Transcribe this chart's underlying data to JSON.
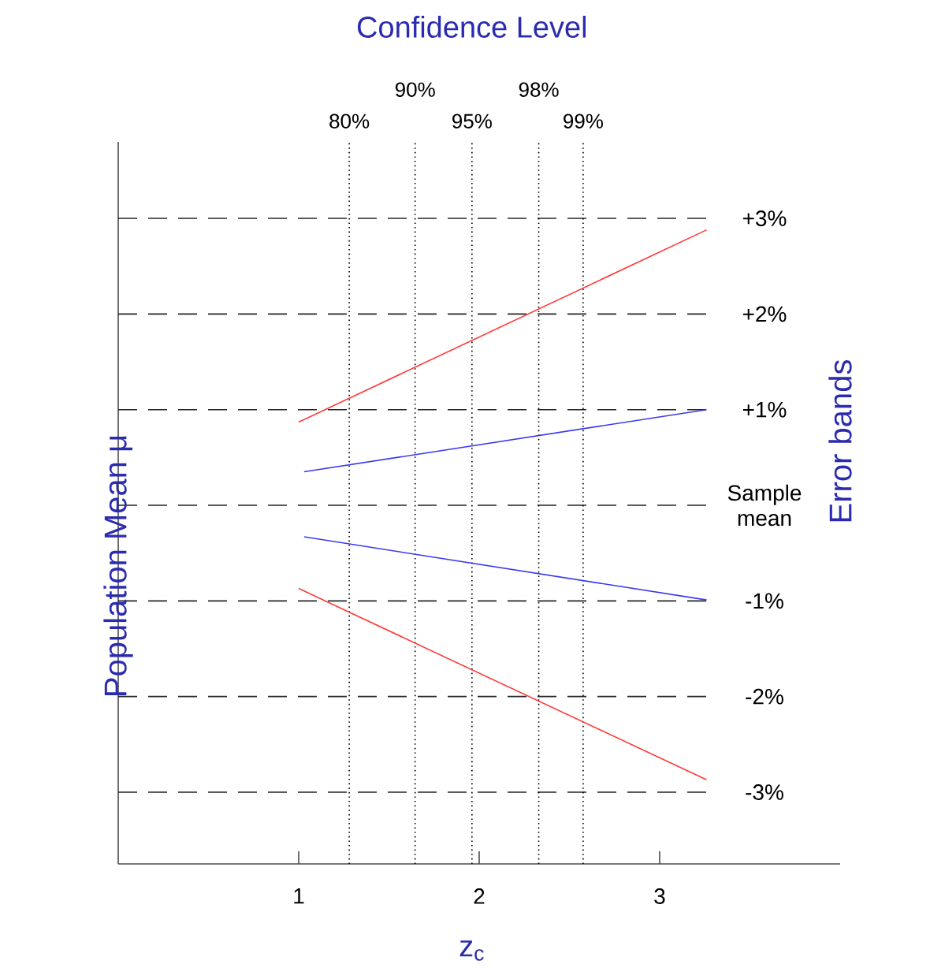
{
  "chart_data": {
    "type": "line",
    "title": "Confidence Level",
    "xlabel": "z$_{c}$",
    "ylabel": "Population Mean μ",
    "y2label": "Error bands",
    "xlim": [
      0,
      4
    ],
    "xticks": [
      1,
      2,
      3
    ],
    "annotations": [
      "80%",
      "90%",
      "95%",
      "98%",
      "99%"
    ],
    "y2lim": [
      -3.75,
      3.8
    ],
    "y2ticks": [
      {
        "value": 3,
        "label": "+3%"
      },
      {
        "value": 2,
        "label": "+2%"
      },
      {
        "value": 1,
        "label": "+1%"
      },
      {
        "value": 0,
        "label": "Sample mean"
      },
      {
        "value": -1,
        "label": "-1%"
      },
      {
        "value": -2,
        "label": "-2%"
      },
      {
        "value": -3,
        "label": "-3%"
      }
    ],
    "grid": "y",
    "marker": "none",
    "line_style": "solid",
    "series": [
      {
        "color": "#ff3a3a",
        "axis": "y2",
        "x": [
          1.0,
          3.26
        ],
        "values": [
          0.87,
          2.88
        ]
      },
      {
        "color": "#3a3aee",
        "axis": "y2",
        "x": [
          1.03,
          3.26
        ],
        "values": [
          0.35,
          1.0
        ]
      },
      {
        "color": "#3a3aee",
        "axis": "y2",
        "x": [
          1.03,
          3.26
        ],
        "values": [
          -0.33,
          -0.99
        ]
      },
      {
        "color": "#ff3a3a",
        "axis": "y2",
        "x": [
          1.0,
          3.26
        ],
        "values": [
          -0.87,
          -2.87
        ]
      }
    ],
    "ref_lines": [
      {
        "axis": "x",
        "value": 1.28,
        "line_style": "dotted"
      },
      {
        "axis": "x",
        "value": 1.645,
        "line_style": "dotted"
      },
      {
        "axis": "x",
        "value": 1.96,
        "line_style": "dotted"
      },
      {
        "axis": "x",
        "value": 2.33,
        "line_style": "dotted"
      },
      {
        "axis": "x",
        "value": 2.576,
        "line_style": "dotted"
      }
    ]
  }
}
